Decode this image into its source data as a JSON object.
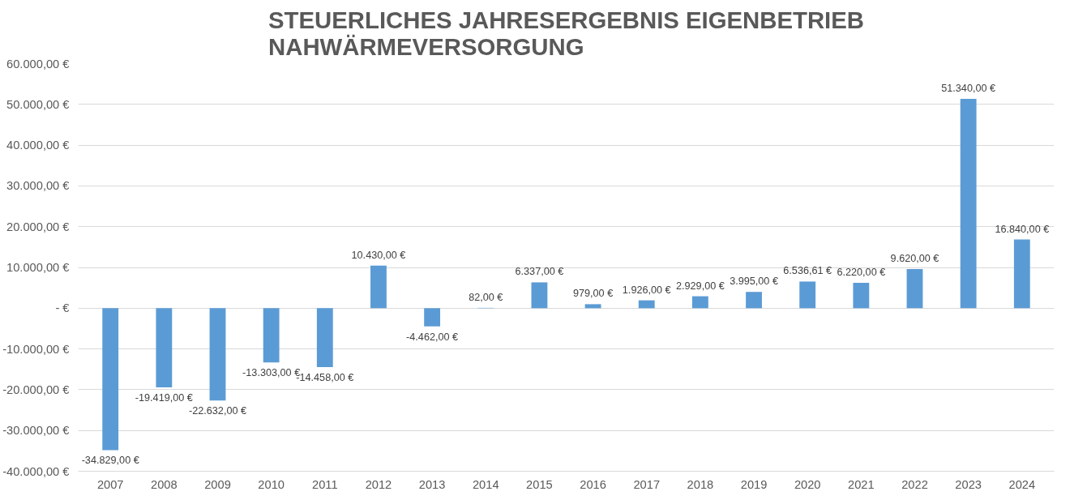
{
  "chart_data": {
    "type": "bar",
    "title": "STEUERLICHES JAHRESERGEBNIS EIGENBETRIEB\nNAHWÄRMEVERSORGUNG",
    "categories": [
      "2007",
      "2008",
      "2009",
      "2010",
      "2011",
      "2012",
      "2013",
      "2014",
      "2015",
      "2016",
      "2017",
      "2018",
      "2019",
      "2020",
      "2021",
      "2022",
      "2023",
      "2024"
    ],
    "values": [
      -34829,
      -19419,
      -22632,
      -13303,
      -14458,
      10430,
      -4462,
      82,
      6337,
      979,
      1926,
      2929,
      3995,
      6536.61,
      6220,
      9620,
      51340,
      16840
    ],
    "value_labels": [
      "-34.829,00 €",
      "-19.419,00 €",
      "-22.632,00 €",
      "-13.303,00 €",
      "-14.458,00 €",
      "10.430,00 €",
      "-4.462,00 €",
      "82,00 €",
      "6.337,00 €",
      "979,00 €",
      "1.926,00 €",
      "2.929,00 €",
      "3.995,00 €",
      "6.536,61 €",
      "6.220,00 €",
      "9.620,00 €",
      "51.340,00 €",
      "16.840,00 €"
    ],
    "color": "#5b9bd5",
    "ylim": [
      -40000,
      60000
    ],
    "yticks": [
      {
        "value": -40000,
        "label": "-40.000,00 €"
      },
      {
        "value": -30000,
        "label": "-30.000,00 €"
      },
      {
        "value": -20000,
        "label": "-20.000,00 €"
      },
      {
        "value": -10000,
        "label": "-10.000,00 €"
      },
      {
        "value": 0,
        "label": "- €"
      },
      {
        "value": 10000,
        "label": "10.000,00 €"
      },
      {
        "value": 20000,
        "label": "20.000,00 €"
      },
      {
        "value": 30000,
        "label": "30.000,00 €"
      },
      {
        "value": 40000,
        "label": "40.000,00 €"
      },
      {
        "value": 50000,
        "label": "50.000,00 €"
      },
      {
        "value": 60000,
        "label": "60.000,00 €"
      }
    ],
    "grid": "y"
  }
}
